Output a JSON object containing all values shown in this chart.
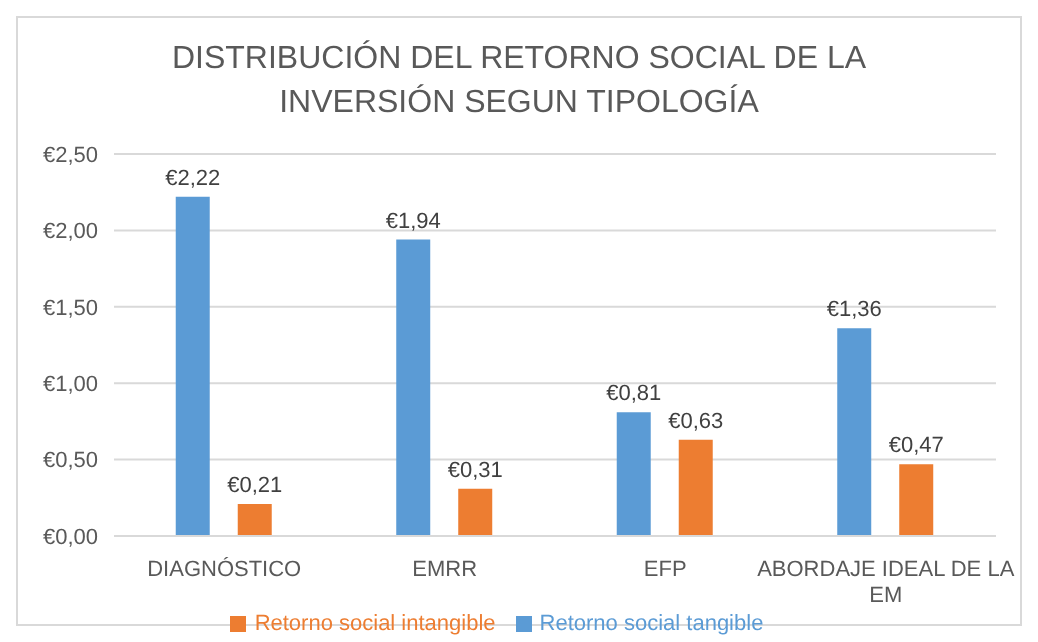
{
  "chart_data": {
    "type": "bar",
    "title": "DISTRIBUCIÓN DEL RETORNO SOCIAL DE LA INVERSIÓN SEGUN TIPOLOGÍA",
    "categories": [
      "DIAGNÓSTICO",
      "EMRR",
      "EFP",
      "ABORDAJE IDEAL DE LA EM"
    ],
    "series": [
      {
        "name": "Retorno social tangible",
        "color": "#5b9bd5",
        "values": [
          2.22,
          1.94,
          0.81,
          1.36
        ],
        "value_labels": [
          "€2,22",
          "€1,94",
          "€0,81",
          "€1,36"
        ]
      },
      {
        "name": "Retorno social intangible",
        "color": "#ed7d31",
        "values": [
          0.21,
          0.31,
          0.63,
          0.47
        ],
        "value_labels": [
          "€0,21",
          "€0,31",
          "€0,63",
          "€0,47"
        ]
      }
    ],
    "ylim": [
      0,
      2.5
    ],
    "yticks": [
      {
        "value": 0,
        "label": "€0,00"
      },
      {
        "value": 0.5,
        "label": "€0,50"
      },
      {
        "value": 1,
        "label": "€1,00"
      },
      {
        "value": 1.5,
        "label": "€1,50"
      },
      {
        "value": 2,
        "label": "€2,00"
      },
      {
        "value": 2.5,
        "label": "€2,50"
      }
    ],
    "grid": "y",
    "legend": "bottom"
  }
}
